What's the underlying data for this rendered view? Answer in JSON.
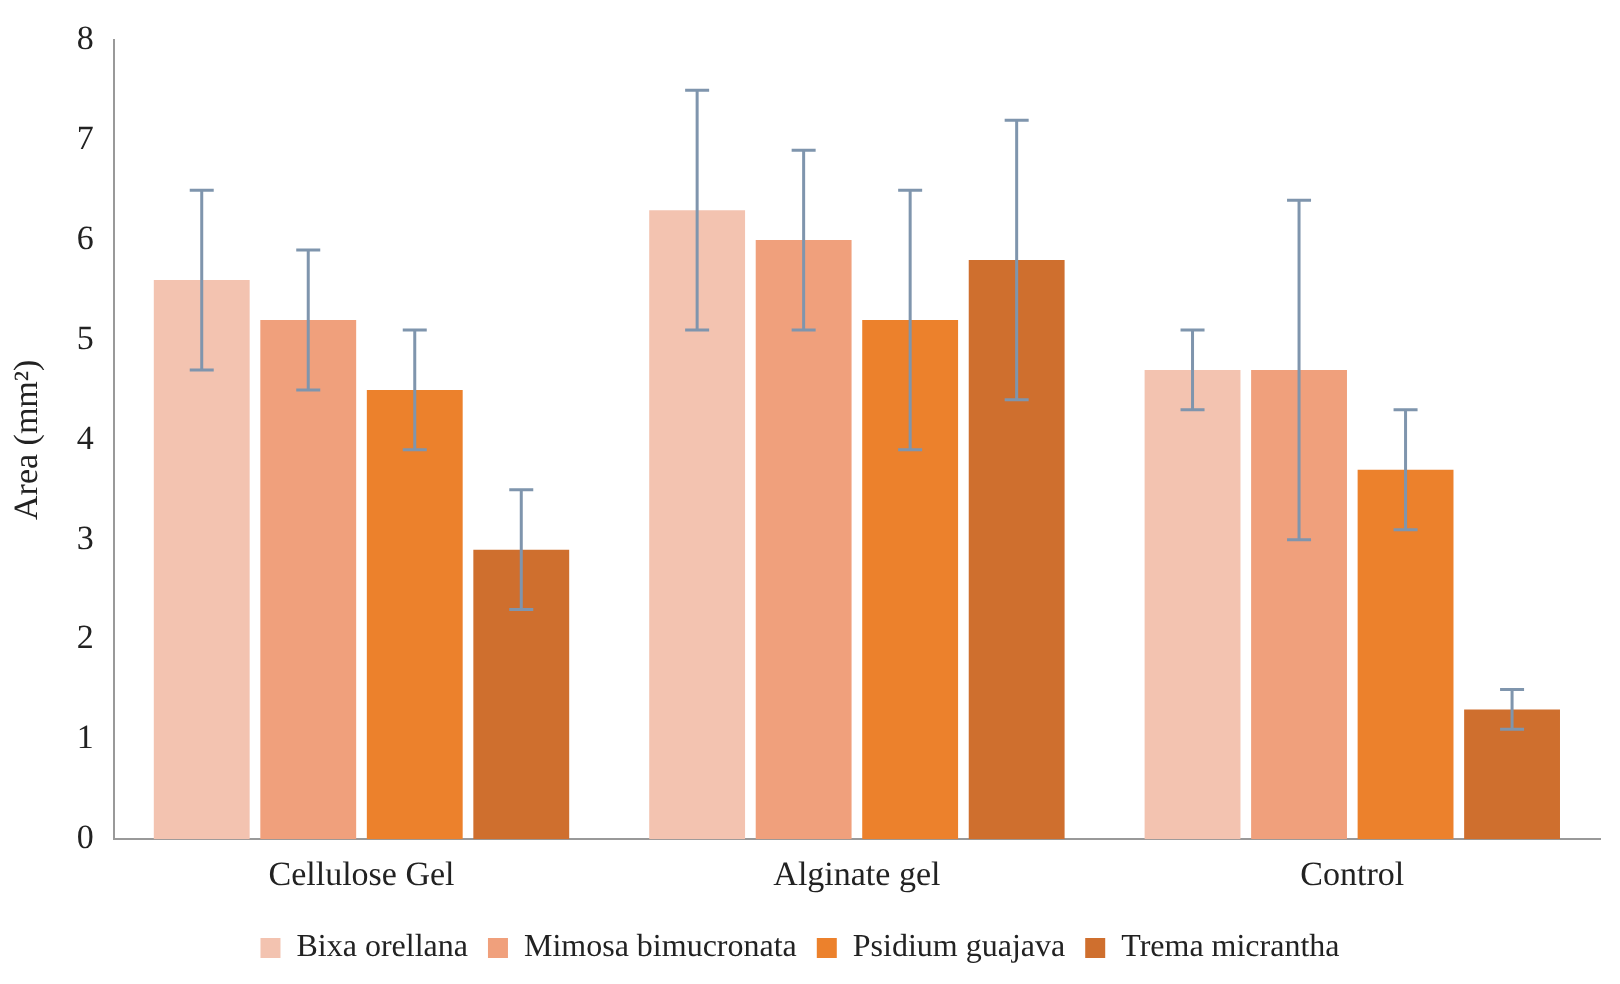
{
  "chart_data": {
    "type": "bar",
    "ylabel": "Area (mm²)",
    "categories": [
      "Cellulose Gel",
      "Alginate gel",
      "Control"
    ],
    "series": [
      {
        "name": "Bixa orellana",
        "color": "#f3c3b0",
        "values": [
          5.6,
          6.3,
          4.7
        ],
        "errors": [
          0.9,
          1.2,
          0.4
        ]
      },
      {
        "name": "Mimosa bimucronata",
        "color": "#f0a07c",
        "values": [
          5.2,
          6.0,
          4.7
        ],
        "errors": [
          0.7,
          0.9,
          1.7
        ]
      },
      {
        "name": "Psidium guajava",
        "color": "#ec812c",
        "values": [
          4.5,
          5.2,
          3.7
        ],
        "errors": [
          0.6,
          1.3,
          0.6
        ]
      },
      {
        "name": "Trema micrantha",
        "color": "#cf6f2e",
        "values": [
          2.9,
          5.8,
          1.3
        ],
        "errors": [
          0.6,
          1.4,
          0.2
        ]
      }
    ],
    "ylim": [
      0,
      8
    ],
    "yticks": [
      0,
      1,
      2,
      3,
      4,
      5,
      6,
      7,
      8
    ],
    "grid": false,
    "legend": "bottom"
  }
}
